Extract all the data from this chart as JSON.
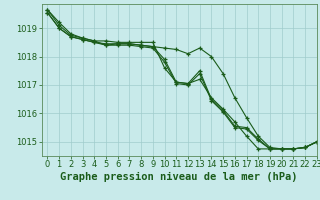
{
  "title": "Graphe pression niveau de la mer (hPa)",
  "background_color": "#c8eaea",
  "grid_color": "#a0cccc",
  "line_color": "#1a5c1a",
  "marker_color": "#1a5c1a",
  "xlim": [
    -0.5,
    23
  ],
  "ylim": [
    1014.5,
    1019.85
  ],
  "yticks": [
    1015,
    1016,
    1017,
    1018,
    1019
  ],
  "xticks": [
    0,
    1,
    2,
    3,
    4,
    5,
    6,
    7,
    8,
    9,
    10,
    11,
    12,
    13,
    14,
    15,
    16,
    17,
    18,
    19,
    20,
    21,
    22,
    23
  ],
  "series": [
    [
      1019.65,
      1019.2,
      1018.8,
      1018.65,
      1018.55,
      1018.55,
      1018.5,
      1018.5,
      1018.5,
      1018.5,
      1017.6,
      1017.1,
      1017.05,
      1017.2,
      1016.55,
      1016.15,
      1015.7,
      1015.2,
      1014.75,
      1014.75,
      1014.75,
      1014.75,
      1014.8,
      1015.0
    ],
    [
      1019.65,
      1019.1,
      1018.75,
      1018.65,
      1018.55,
      1018.4,
      1018.45,
      1018.45,
      1018.4,
      1018.35,
      1018.3,
      1018.25,
      1018.1,
      1018.3,
      1018.0,
      1017.4,
      1016.55,
      1015.85,
      1015.2,
      1014.8,
      1014.75,
      1014.75,
      1014.8,
      1015.0
    ],
    [
      1019.55,
      1019.0,
      1018.7,
      1018.6,
      1018.5,
      1018.45,
      1018.45,
      1018.45,
      1018.4,
      1018.35,
      1017.9,
      1017.1,
      1017.05,
      1017.5,
      1016.5,
      1016.1,
      1015.55,
      1015.5,
      1015.1,
      1014.75,
      1014.75,
      1014.75,
      1014.8,
      1015.0
    ],
    [
      1019.55,
      1019.0,
      1018.7,
      1018.6,
      1018.5,
      1018.4,
      1018.4,
      1018.4,
      1018.35,
      1018.3,
      1017.8,
      1017.05,
      1017.0,
      1017.4,
      1016.45,
      1016.05,
      1015.5,
      1015.45,
      1015.05,
      1014.75,
      1014.75,
      1014.75,
      1014.8,
      1015.0
    ]
  ],
  "title_fontsize": 7.5,
  "tick_fontsize": 6,
  "title_color": "#1a5c1a",
  "tick_color": "#1a5c1a",
  "axis_color": "#5a8a5a"
}
